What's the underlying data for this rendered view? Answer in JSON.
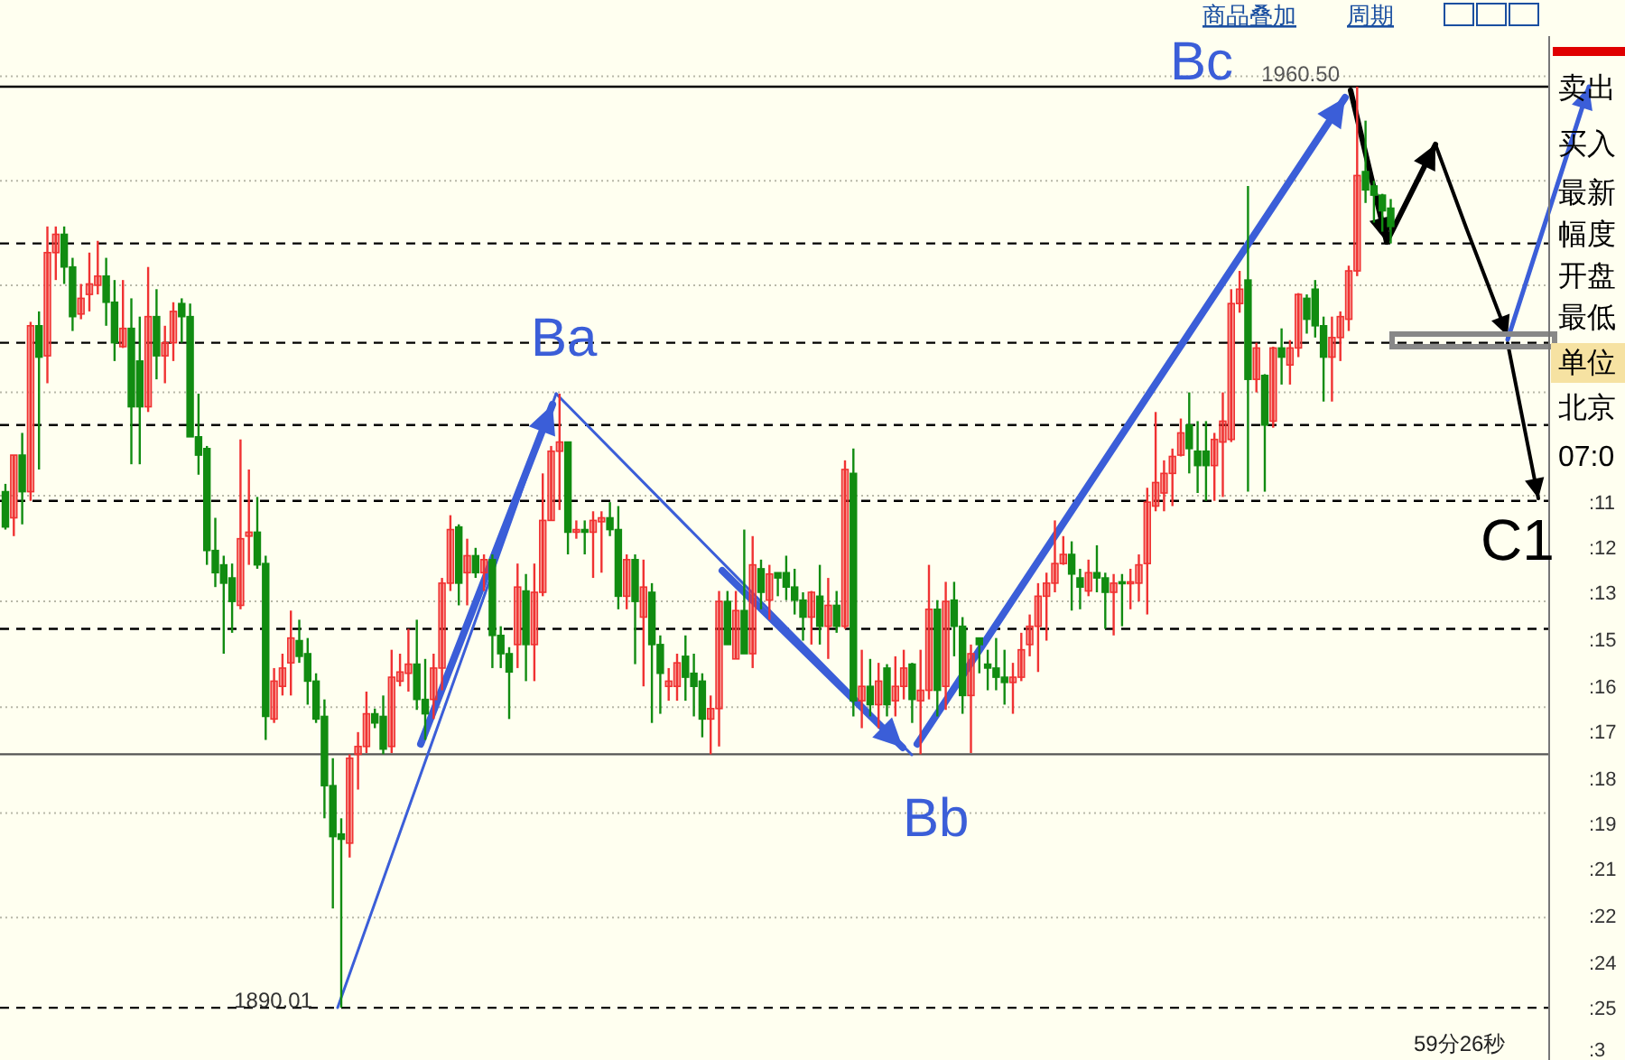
{
  "chart_data": {
    "type": "candlestick",
    "categories": [
      null,
      null,
      null,
      null,
      null,
      null,
      null,
      null,
      null,
      null,
      null,
      null,
      null,
      null,
      null,
      null,
      null,
      null,
      null,
      null,
      null,
      null,
      null,
      null,
      null,
      null,
      null,
      null,
      null,
      null,
      null,
      null,
      null,
      null,
      null,
      null,
      null,
      null,
      null,
      null,
      null,
      null,
      null,
      null,
      null,
      null,
      null,
      null,
      null,
      null,
      null,
      null,
      null,
      null,
      null,
      null,
      null,
      null,
      null,
      null,
      null,
      null,
      null,
      null,
      null,
      null,
      null,
      null,
      null,
      null,
      null,
      null,
      null,
      null,
      null,
      null,
      null,
      null,
      null,
      null,
      null,
      null,
      null,
      null,
      null,
      null,
      null,
      null,
      null,
      null,
      null,
      null,
      null,
      null,
      null,
      null,
      null,
      null,
      null,
      null,
      null,
      null,
      null,
      null,
      null,
      null,
      null,
      null,
      null,
      null,
      null,
      null,
      null,
      null,
      null,
      null,
      null,
      null,
      null,
      null,
      null,
      null,
      null,
      null,
      null,
      null,
      null,
      null,
      null,
      null,
      null,
      null,
      null,
      null,
      null,
      null,
      null,
      null,
      null,
      null,
      null,
      null,
      null,
      null,
      null,
      null,
      null,
      null,
      null,
      null,
      null,
      null,
      null,
      null,
      null,
      null,
      null,
      null,
      null,
      null,
      null,
      null,
      null,
      null,
      null,
      null
    ],
    "ohlc": [
      [
        1929.5,
        1930.1,
        1926.6,
        1926.8
      ],
      [
        1927.5,
        1932.3,
        1926.1,
        1932.3
      ],
      [
        1932.3,
        1934.0,
        1927.0,
        1929.5
      ],
      [
        1929.5,
        1942.5,
        1928.8,
        1942.2
      ],
      [
        1942.2,
        1943.3,
        1931.2,
        1939.8
      ],
      [
        1939.9,
        1949.8,
        1937.8,
        1947.8
      ],
      [
        1947.8,
        1949.8,
        1945.7,
        1949.2
      ],
      [
        1949.2,
        1949.8,
        1945.4,
        1946.7
      ],
      [
        1946.7,
        1947.4,
        1941.8,
        1942.9
      ],
      [
        1943.1,
        1945.4,
        1942.7,
        1944.3
      ],
      [
        1944.6,
        1947.8,
        1943.3,
        1945.4
      ],
      [
        1945.3,
        1948.7,
        1944.6,
        1946.0
      ],
      [
        1946.0,
        1947.4,
        1942.2,
        1944.0
      ],
      [
        1944.0,
        1945.7,
        1939.5,
        1940.9
      ],
      [
        1940.6,
        1945.7,
        1940.5,
        1942.0
      ],
      [
        1942.0,
        1944.3,
        1931.6,
        1936.0
      ],
      [
        1939.5,
        1942.9,
        1931.6,
        1936.0
      ],
      [
        1936.0,
        1946.7,
        1935.6,
        1942.9
      ],
      [
        1942.9,
        1945.0,
        1938.1,
        1939.9
      ],
      [
        1939.9,
        1942.2,
        1937.8,
        1940.9
      ],
      [
        1940.9,
        1944.0,
        1939.5,
        1943.3
      ],
      [
        1943.9,
        1944.3,
        1940.9,
        1942.9
      ],
      [
        1942.9,
        1943.9,
        1933.7,
        1933.7
      ],
      [
        1933.7,
        1937.0,
        1930.8,
        1932.3
      ],
      [
        1932.8,
        1933.0,
        1923.9,
        1925.0
      ],
      [
        1925.0,
        1927.5,
        1922.2,
        1923.3
      ],
      [
        1923.9,
        1924.6,
        1917.1,
        1922.5
      ],
      [
        1922.9,
        1924.0,
        1918.7,
        1921.1
      ],
      [
        1920.8,
        1933.5,
        1920.5,
        1925.9
      ],
      [
        1926.1,
        1931.2,
        1923.9,
        1926.4
      ],
      [
        1926.4,
        1929.1,
        1923.6,
        1923.9
      ],
      [
        1924.0,
        1924.6,
        1910.5,
        1912.3
      ],
      [
        1912.1,
        1916.0,
        1911.8,
        1915.0
      ],
      [
        1914.6,
        1917.1,
        1913.9,
        1916.0
      ],
      [
        1916.4,
        1920.4,
        1913.9,
        1918.3
      ],
      [
        1918.1,
        1919.7,
        1916.4,
        1916.9
      ],
      [
        1917.1,
        1918.3,
        1913.2,
        1915.0
      ],
      [
        1915.0,
        1915.6,
        1911.8,
        1912.1
      ],
      [
        1912.3,
        1913.6,
        1904.5,
        1907.0
      ],
      [
        1907.0,
        1909.1,
        1897.6,
        1903.1
      ],
      [
        1903.3,
        1904.5,
        1890.01,
        1902.9
      ],
      [
        1902.6,
        1909.4,
        1901.5,
        1909.1
      ],
      [
        1909.4,
        1911.1,
        1906.7,
        1910.0
      ],
      [
        1910.0,
        1914.2,
        1909.5,
        1912.5
      ],
      [
        1912.5,
        1912.9,
        1911.4,
        1911.8
      ],
      [
        1912.3,
        1913.9,
        1909.4,
        1909.8
      ],
      [
        1910.0,
        1917.4,
        1909.5,
        1915.3
      ],
      [
        1915.0,
        1917.1,
        1914.6,
        1915.7
      ],
      [
        1915.6,
        1919.0,
        1914.2,
        1916.3
      ],
      [
        1916.3,
        1919.7,
        1912.8,
        1913.6
      ],
      [
        1913.6,
        1916.7,
        1910.5,
        1912.5
      ],
      [
        1913.6,
        1917.1,
        1912.1,
        1916.0
      ],
      [
        1916.0,
        1922.9,
        1914.3,
        1922.5
      ],
      [
        1922.5,
        1927.7,
        1921.9,
        1926.6
      ],
      [
        1926.8,
        1927.0,
        1920.8,
        1922.5
      ],
      [
        1923.3,
        1925.9,
        1920.8,
        1924.6
      ],
      [
        1924.6,
        1925.2,
        1922.9,
        1923.3
      ],
      [
        1923.3,
        1924.7,
        1921.9,
        1924.3
      ],
      [
        1924.3,
        1924.7,
        1916.0,
        1918.5
      ],
      [
        1918.5,
        1919.2,
        1916.0,
        1917.1
      ],
      [
        1917.1,
        1917.6,
        1912.1,
        1915.7
      ],
      [
        1917.8,
        1924.0,
        1916.0,
        1922.2
      ],
      [
        1921.9,
        1923.2,
        1915.0,
        1917.8
      ],
      [
        1917.8,
        1924.0,
        1915.0,
        1921.8
      ],
      [
        1921.8,
        1930.9,
        1921.5,
        1927.3
      ],
      [
        1927.3,
        1933.0,
        1927.3,
        1932.6
      ],
      [
        1932.6,
        1937.0,
        1928.1,
        1933.3
      ],
      [
        1933.3,
        1933.3,
        1924.7,
        1926.4
      ],
      [
        1926.4,
        1927.3,
        1925.9,
        1926.6
      ],
      [
        1926.6,
        1927.3,
        1924.7,
        1926.4
      ],
      [
        1926.4,
        1928.0,
        1922.9,
        1927.3
      ],
      [
        1927.2,
        1928.0,
        1923.3,
        1927.5
      ],
      [
        1927.5,
        1928.7,
        1926.1,
        1926.6
      ],
      [
        1926.6,
        1928.4,
        1920.5,
        1921.5
      ],
      [
        1921.5,
        1924.7,
        1920.5,
        1924.3
      ],
      [
        1924.3,
        1924.7,
        1916.3,
        1921.1
      ],
      [
        1919.9,
        1924.3,
        1914.6,
        1922.2
      ],
      [
        1921.8,
        1922.5,
        1911.8,
        1917.8
      ],
      [
        1917.8,
        1918.5,
        1912.5,
        1915.6
      ],
      [
        1914.6,
        1916.0,
        1913.5,
        1915.0
      ],
      [
        1914.6,
        1917.1,
        1913.5,
        1916.4
      ],
      [
        1916.9,
        1918.5,
        1913.5,
        1915.3
      ],
      [
        1915.6,
        1917.1,
        1912.3,
        1914.6
      ],
      [
        1915.0,
        1915.6,
        1910.7,
        1912.1
      ],
      [
        1912.1,
        1913.9,
        1909.4,
        1912.9
      ],
      [
        1912.9,
        1921.9,
        1910.0,
        1921.1
      ],
      [
        1921.1,
        1921.9,
        1917.8,
        1917.8
      ],
      [
        1916.7,
        1921.9,
        1916.7,
        1920.4
      ],
      [
        1920.4,
        1926.6,
        1917.1,
        1917.1
      ],
      [
        1917.1,
        1926.1,
        1916.0,
        1923.9
      ],
      [
        1923.6,
        1924.3,
        1920.5,
        1921.8
      ],
      [
        1921.2,
        1923.9,
        1919.7,
        1923.2
      ],
      [
        1923.3,
        1923.3,
        1921.5,
        1922.9
      ],
      [
        1923.3,
        1924.6,
        1921.2,
        1922.2
      ],
      [
        1922.2,
        1923.6,
        1920.1,
        1921.2
      ],
      [
        1921.2,
        1921.8,
        1918.1,
        1919.9
      ],
      [
        1919.9,
        1921.9,
        1917.8,
        1921.8
      ],
      [
        1921.5,
        1923.9,
        1917.8,
        1919.2
      ],
      [
        1919.2,
        1922.9,
        1916.7,
        1920.8
      ],
      [
        1920.8,
        1921.9,
        1918.7,
        1919.2
      ],
      [
        1919.2,
        1931.9,
        1919.0,
        1931.2
      ],
      [
        1930.9,
        1932.8,
        1912.3,
        1913.5
      ],
      [
        1913.5,
        1917.4,
        1911.4,
        1914.6
      ],
      [
        1914.6,
        1916.7,
        1912.3,
        1913.2
      ],
      [
        1913.2,
        1916.4,
        1911.4,
        1915.0
      ],
      [
        1916.0,
        1916.3,
        1912.3,
        1913.2
      ],
      [
        1913.5,
        1916.9,
        1912.3,
        1914.6
      ],
      [
        1914.6,
        1917.4,
        1913.6,
        1916.0
      ],
      [
        1916.3,
        1916.4,
        1911.8,
        1913.6
      ],
      [
        1913.5,
        1917.4,
        1909.4,
        1914.3
      ],
      [
        1914.3,
        1923.9,
        1913.6,
        1920.5
      ],
      [
        1920.5,
        1921.2,
        1912.3,
        1914.3
      ],
      [
        1914.6,
        1922.6,
        1912.8,
        1921.1
      ],
      [
        1921.2,
        1922.6,
        1916.9,
        1919.2
      ],
      [
        1919.2,
        1919.9,
        1912.5,
        1913.9
      ],
      [
        1913.9,
        1917.8,
        1909.5,
        1917.1
      ],
      [
        1918.3,
        1918.3,
        1915.6,
        1917.8
      ],
      [
        1916.3,
        1917.4,
        1914.3,
        1916.0
      ],
      [
        1916.0,
        1918.3,
        1914.3,
        1915.3
      ],
      [
        1915.3,
        1917.4,
        1913.2,
        1914.9
      ],
      [
        1914.9,
        1916.4,
        1912.5,
        1915.3
      ],
      [
        1915.3,
        1918.7,
        1915.0,
        1917.4
      ],
      [
        1917.8,
        1920.1,
        1916.9,
        1919.2
      ],
      [
        1919.2,
        1922.5,
        1915.7,
        1921.5
      ],
      [
        1921.5,
        1923.3,
        1918.1,
        1922.5
      ],
      [
        1922.5,
        1927.3,
        1921.8,
        1924.0
      ],
      [
        1924.0,
        1926.1,
        1923.9,
        1924.7
      ],
      [
        1924.7,
        1925.7,
        1920.4,
        1923.2
      ],
      [
        1922.9,
        1923.6,
        1920.5,
        1922.2
      ],
      [
        1921.9,
        1924.3,
        1921.5,
        1923.3
      ],
      [
        1923.3,
        1925.4,
        1921.8,
        1922.9
      ],
      [
        1922.9,
        1923.3,
        1919.0,
        1921.8
      ],
      [
        1921.8,
        1923.2,
        1918.5,
        1922.5
      ],
      [
        1922.6,
        1923.2,
        1919.2,
        1922.5
      ],
      [
        1922.5,
        1923.6,
        1920.5,
        1922.6
      ],
      [
        1922.5,
        1924.7,
        1921.1,
        1923.9
      ],
      [
        1924.0,
        1929.8,
        1920.1,
        1928.7
      ],
      [
        1928.4,
        1935.6,
        1928.0,
        1930.2
      ],
      [
        1929.4,
        1931.9,
        1928.0,
        1930.9
      ],
      [
        1930.9,
        1932.8,
        1928.4,
        1932.2
      ],
      [
        1932.3,
        1935.1,
        1932.2,
        1934.0
      ],
      [
        1934.6,
        1937.1,
        1930.9,
        1932.8
      ],
      [
        1932.6,
        1934.9,
        1929.4,
        1931.5
      ],
      [
        1932.6,
        1934.9,
        1928.8,
        1931.5
      ],
      [
        1931.5,
        1934.0,
        1928.8,
        1933.5
      ],
      [
        1933.3,
        1937.1,
        1929.1,
        1934.9
      ],
      [
        1933.5,
        1945.0,
        1933.3,
        1943.9
      ],
      [
        1943.9,
        1946.4,
        1943.2,
        1945.0
      ],
      [
        1945.7,
        1952.9,
        1929.5,
        1938.1
      ],
      [
        1938.1,
        1940.9,
        1937.1,
        1940.5
      ],
      [
        1938.4,
        1938.5,
        1929.5,
        1934.6
      ],
      [
        1934.9,
        1940.6,
        1934.4,
        1940.5
      ],
      [
        1940.5,
        1942.0,
        1937.7,
        1939.8
      ],
      [
        1939.2,
        1941.1,
        1937.7,
        1940.5
      ],
      [
        1940.5,
        1944.7,
        1939.8,
        1944.6
      ],
      [
        1944.3,
        1944.6,
        1941.6,
        1942.7
      ],
      [
        1945.0,
        1945.7,
        1941.3,
        1942.2
      ],
      [
        1942.2,
        1942.9,
        1936.4,
        1939.8
      ],
      [
        1939.8,
        1942.9,
        1936.4,
        1941.3
      ],
      [
        1941.3,
        1943.3,
        1939.5,
        1942.9
      ],
      [
        1942.7,
        1946.8,
        1941.8,
        1946.4
      ],
      [
        1946.4,
        1960.5,
        1946.0,
        1953.7
      ],
      [
        1954.0,
        1957.9,
        1951.6,
        1952.6
      ],
      [
        1952.9,
        1953.3,
        1950.1,
        1952.2
      ],
      [
        1952.2,
        1952.3,
        1949.4,
        1951.0
      ],
      [
        1951.2,
        1951.9,
        1948.5,
        1949.8
      ]
    ],
    "colors": [
      "#118c11",
      "#f03232",
      "#118c11",
      "#f03232",
      "#118c11",
      "#f03232",
      "#f03232",
      "#118c11",
      "#118c11",
      "#f03232",
      "#f03232",
      "#f03232",
      "#118c11",
      "#118c11",
      "#f03232",
      "#118c11",
      "#118c11",
      "#f03232",
      "#118c11",
      "#f03232",
      "#f03232",
      "#118c11",
      "#118c11",
      "#118c11",
      "#118c11",
      "#118c11",
      "#118c11",
      "#118c11",
      "#f03232",
      "#f03232",
      "#118c11",
      "#118c11",
      "#f03232",
      "#f03232",
      "#f03232",
      "#118c11",
      "#118c11",
      "#118c11",
      "#118c11",
      "#118c11",
      "#118c11",
      "#f03232",
      "#f03232",
      "#f03232",
      "#118c11",
      "#118c11",
      "#f03232",
      "#f03232",
      "#f03232",
      "#118c11",
      "#118c11",
      "#f03232",
      "#f03232",
      "#f03232",
      "#118c11",
      "#f03232",
      "#118c11",
      "#f03232",
      "#118c11",
      "#118c11",
      "#118c11",
      "#f03232",
      "#118c11",
      "#f03232",
      "#f03232",
      "#f03232",
      "#f03232",
      "#118c11",
      "#f03232",
      "#118c11",
      "#f03232",
      "#f03232",
      "#118c11",
      "#118c11",
      "#f03232",
      "#118c11",
      "#f03232",
      "#118c11",
      "#118c11",
      "#f03232",
      "#f03232",
      "#118c11",
      "#118c11",
      "#118c11",
      "#f03232",
      "#f03232",
      "#118c11",
      "#f03232",
      "#118c11",
      "#f03232",
      "#118c11",
      "#f03232",
      "#118c11",
      "#118c11",
      "#118c11",
      "#118c11",
      "#f03232",
      "#118c11",
      "#f03232",
      "#118c11",
      "#f03232",
      "#118c11",
      "#f03232",
      "#118c11",
      "#f03232",
      "#118c11",
      "#f03232",
      "#f03232",
      "#118c11",
      "#f03232",
      "#f03232",
      "#118c11",
      "#f03232",
      "#118c11",
      "#118c11",
      "#f03232",
      "#118c11",
      "#118c11",
      "#118c11",
      "#118c11",
      "#f03232",
      "#f03232",
      "#f03232",
      "#f03232",
      "#f03232",
      "#f03232",
      "#f03232",
      "#118c11",
      "#118c11",
      "#f03232",
      "#118c11",
      "#118c11",
      "#f03232",
      "#118c11",
      "#f03232",
      "#f03232",
      "#f03232",
      "#f03232",
      "#f03232",
      "#f03232",
      "#f03232",
      "#118c11",
      "#118c11",
      "#118c11",
      "#f03232",
      "#f03232",
      "#f03232",
      "#f03232",
      "#118c11",
      "#f03232",
      "#118c11",
      "#f03232",
      "#118c11",
      "#f03232",
      "#f03232",
      "#118c11",
      "#118c11",
      "#118c11",
      "#f03232",
      "#f03232",
      "#f03232",
      "#f03232",
      "#118c11",
      "#118c11",
      "#118c11",
      "#118c11"
    ],
    "yticks": [
      {
        "value": 1896.9,
        "label": null
      },
      {
        "value": 1904.9,
        "label": null
      },
      {
        "value": 1913.0,
        "label": null
      },
      {
        "value": 1921.1,
        "label": null
      },
      {
        "value": 1929.2,
        "label": null
      },
      {
        "value": 1937.1,
        "label": null
      },
      {
        "value": 1945.3,
        "label": null
      },
      {
        "value": 1953.3,
        "label": null
      },
      {
        "value": 1961.3,
        "label": null
      }
    ],
    "grid": "y",
    "ref_lines": [
      {
        "axis": "y",
        "value": 1960.5,
        "color": "#000000",
        "line_style": "solid"
      },
      {
        "axis": "y",
        "value": 1909.4,
        "color": "#555555",
        "line_style": "solid"
      },
      {
        "axis": "y",
        "value": 1948.5,
        "color": "#000000",
        "line_style": "dashed"
      },
      {
        "axis": "y",
        "value": 1940.9,
        "color": "#000000",
        "line_style": "dashed"
      },
      {
        "axis": "y",
        "value": 1934.6,
        "color": "#000000",
        "line_style": "dashed"
      },
      {
        "axis": "y",
        "value": 1928.8,
        "color": "#000000",
        "line_style": "dashed"
      },
      {
        "axis": "y",
        "value": 1919.0,
        "color": "#000000",
        "line_style": "dashed"
      },
      {
        "axis": "y",
        "value": 1890.0,
        "color": "#000000",
        "line_style": "dashed"
      }
    ],
    "annotations": [
      "Ba",
      "Bb",
      "Bc",
      "C1",
      {
        "text": "1960.50",
        "y": 1960.5
      },
      {
        "text": "1890.01",
        "y": 1890.01
      },
      "商品叠加",
      "周期",
      "卖出",
      "买入",
      "最新",
      "幅度",
      "开盘",
      "最低",
      "单位",
      "北京",
      "07:0",
      ":11",
      ":12",
      ":13",
      ":15",
      ":16",
      ":17",
      ":18",
      ":19",
      ":21",
      ":22",
      ":24",
      ":25",
      ":3",
      "59分26秒"
    ]
  }
}
